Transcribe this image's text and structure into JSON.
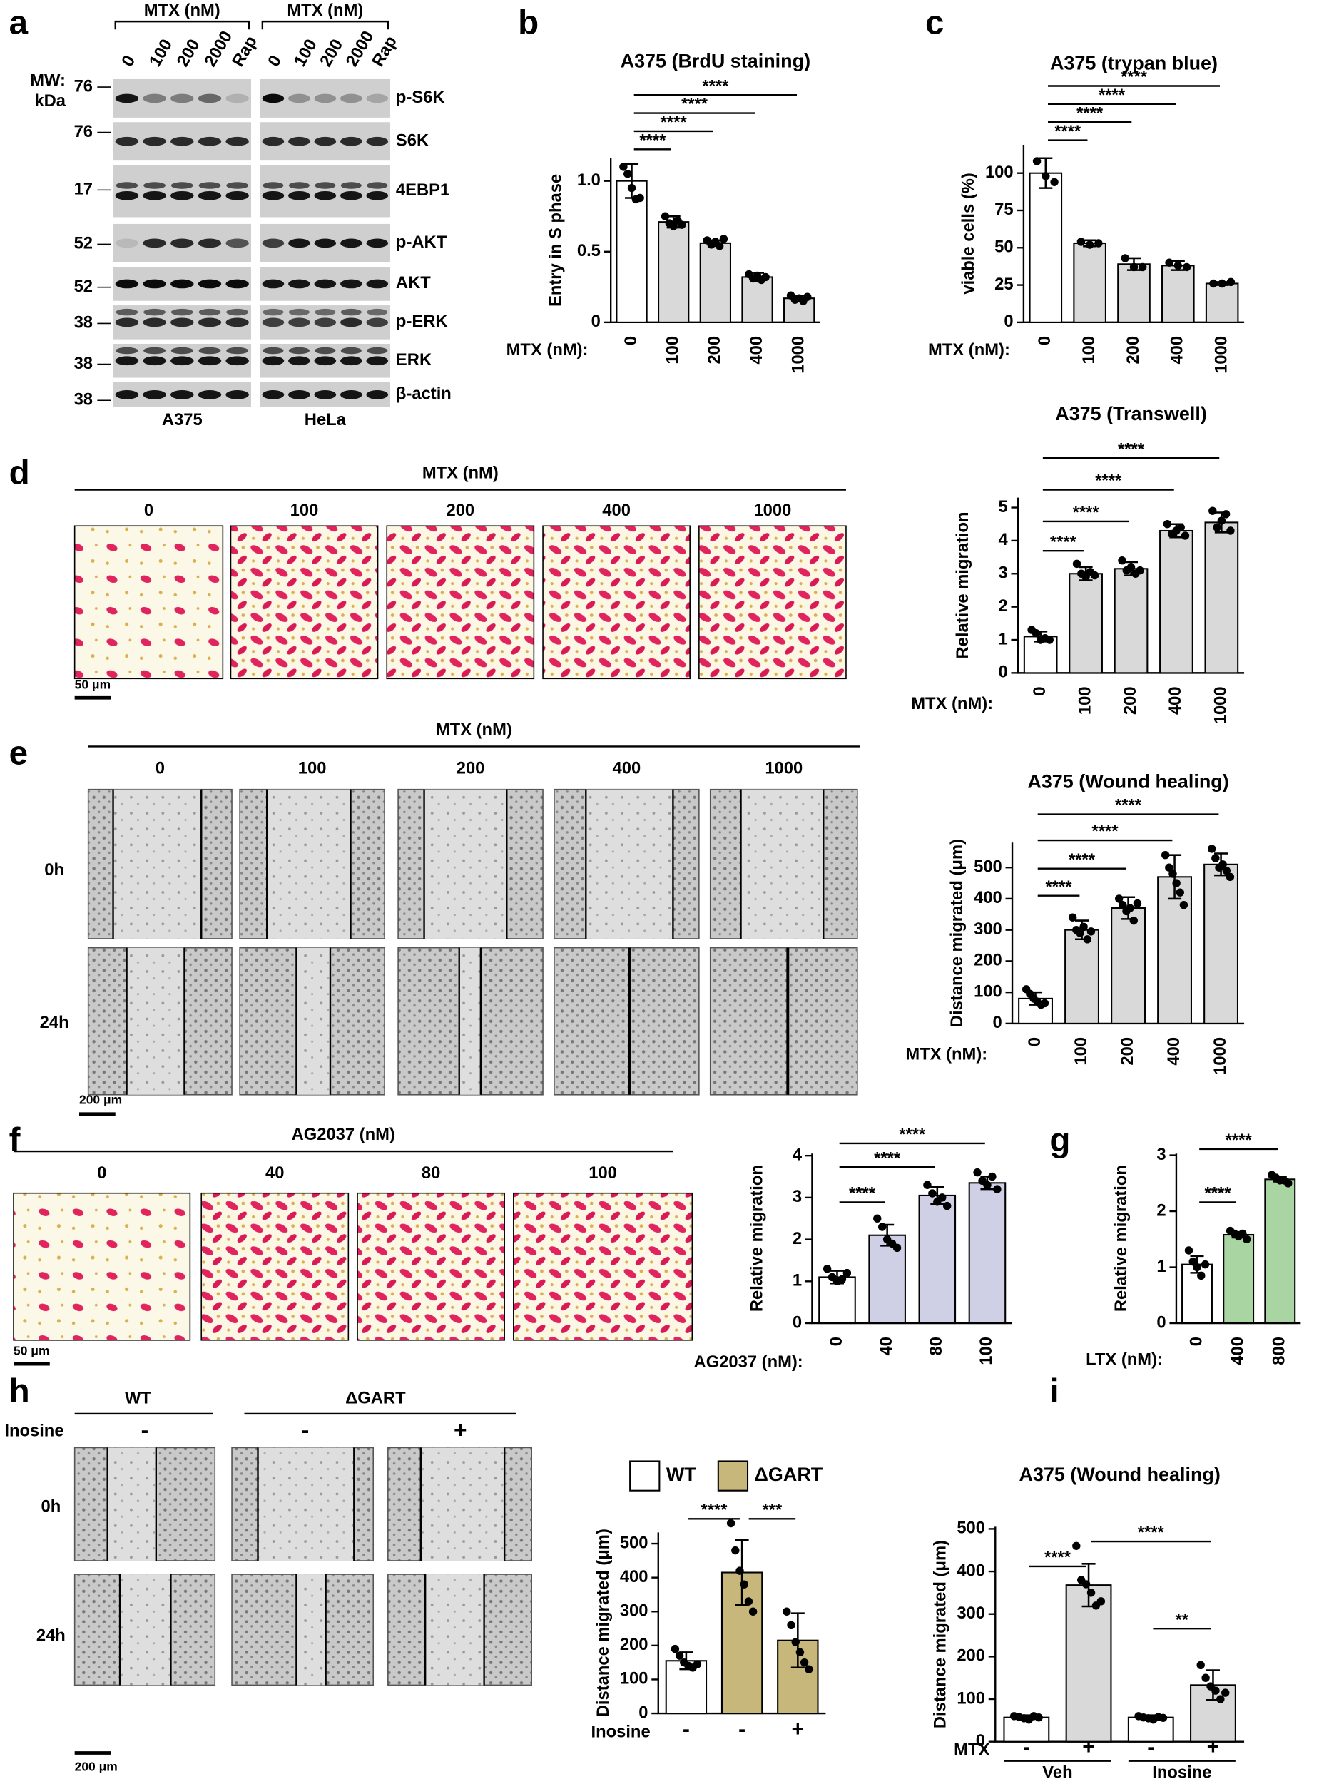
{
  "panel_letters": [
    "a",
    "b",
    "c",
    "d",
    "e",
    "f",
    "g",
    "h",
    "i"
  ],
  "blot": {
    "mw_label": [
      "MW:",
      "kDa"
    ],
    "groups": [
      {
        "header": "MTX (nM)",
        "lanes": [
          "0",
          "100",
          "200",
          "2000",
          "Rap"
        ],
        "cell_line": "A375"
      },
      {
        "header": "MTX (nM)",
        "lanes": [
          "0",
          "100",
          "200",
          "2000",
          "Rap"
        ],
        "cell_line": "HeLa"
      }
    ],
    "rows": [
      {
        "mw": 76,
        "protein": "p-S6K"
      },
      {
        "mw": 76,
        "protein": "S6K"
      },
      {
        "mw": 17,
        "protein": "4EBP1"
      },
      {
        "mw": 52,
        "protein": "p-AKT"
      },
      {
        "mw": 52,
        "protein": "AKT"
      },
      {
        "mw": 38,
        "protein": "p-ERK"
      },
      {
        "mw": 38,
        "protein": "ERK"
      },
      {
        "mw": 38,
        "protein": "β-actin"
      }
    ]
  },
  "images_d": {
    "header": "MTX (nM)",
    "columns": [
      "0",
      "100",
      "200",
      "400",
      "1000"
    ],
    "scale": "50 μm"
  },
  "images_e": {
    "header": "MTX (nM)",
    "columns": [
      "0",
      "100",
      "200",
      "400",
      "1000"
    ],
    "rows": [
      "0h",
      "24h"
    ],
    "scale": "200 μm"
  },
  "images_f": {
    "header": "AG2037 (nM)",
    "columns": [
      "0",
      "40",
      "80",
      "100"
    ],
    "scale": "50 μm"
  },
  "images_h": {
    "groups": [
      "WT",
      "ΔGART"
    ],
    "row_label": "Inosine",
    "columns": [
      "-",
      "-",
      "+"
    ],
    "rows": [
      "0h",
      "24h"
    ],
    "scale": "200 μm"
  },
  "chart_data": [
    {
      "type": "bar",
      "title": "A375 (BrdU staining)",
      "ylabel": "Entry in S phase",
      "xlabel": "MTX (nM):",
      "categories": [
        "0",
        "100",
        "200",
        "400",
        "1000"
      ],
      "values": [
        1.0,
        0.71,
        0.56,
        0.32,
        0.17
      ],
      "errors": [
        0.12,
        0.04,
        0.02,
        0.03,
        0.02
      ],
      "points": [
        [
          1.1,
          1.05,
          0.95,
          0.87,
          0.88
        ],
        [
          0.75,
          0.7,
          0.68,
          0.72,
          0.69
        ],
        [
          0.58,
          0.55,
          0.57,
          0.54,
          0.59
        ],
        [
          0.34,
          0.31,
          0.33,
          0.3,
          0.32
        ],
        [
          0.19,
          0.16,
          0.17,
          0.15,
          0.18
        ]
      ],
      "colors": [
        "#ffffff",
        "#d9d9d9",
        "#d9d9d9",
        "#d9d9d9",
        "#d9d9d9"
      ],
      "ylim": [
        0,
        1.16
      ],
      "yticks": [
        0,
        0.5,
        {
          "value": 1,
          "label": "1.0"
        }
      ],
      "brackets": [
        {
          "from": 0,
          "to": 1,
          "label": "****"
        },
        {
          "from": 0,
          "to": 2,
          "label": "****"
        },
        {
          "from": 0,
          "to": 3,
          "label": "****"
        },
        {
          "from": 0,
          "to": 4,
          "label": "****"
        }
      ]
    },
    {
      "type": "bar",
      "title": "A375 (trypan blue)",
      "ylabel": "viable cells (%)",
      "xlabel": "MTX (nM):",
      "categories": [
        "0",
        "100",
        "200",
        "400",
        "1000"
      ],
      "values": [
        100,
        53,
        39,
        38,
        26
      ],
      "errors": [
        10,
        2,
        4,
        3,
        1
      ],
      "points": [
        [
          108,
          98,
          94
        ],
        [
          54,
          52,
          53
        ],
        [
          43,
          37,
          37
        ],
        [
          40,
          38,
          37
        ],
        [
          26,
          26,
          27
        ]
      ],
      "colors": [
        "#ffffff",
        "#d9d9d9",
        "#d9d9d9",
        "#d9d9d9",
        "#d9d9d9"
      ],
      "ylim": [
        0,
        119
      ],
      "yticks": [
        0,
        25,
        50,
        75,
        100
      ],
      "brackets": [
        {
          "from": 0,
          "to": 1,
          "label": "****"
        },
        {
          "from": 0,
          "to": 2,
          "label": "****"
        },
        {
          "from": 0,
          "to": 3,
          "label": "****"
        },
        {
          "from": 0,
          "to": 4,
          "label": "****"
        }
      ]
    },
    {
      "type": "bar",
      "title": "A375 (Transwell)",
      "ylabel": "Relative migration",
      "xlabel": "MTX (nM):",
      "categories": [
        "0",
        "100",
        "200",
        "400",
        "1000"
      ],
      "values": [
        1.1,
        3.0,
        3.15,
        4.3,
        4.55
      ],
      "errors": [
        0.15,
        0.2,
        0.2,
        0.2,
        0.3
      ],
      "points": [
        [
          1.3,
          1.2,
          1.0,
          1.05,
          1.0
        ],
        [
          3.3,
          3.0,
          2.9,
          3.05,
          2.95
        ],
        [
          3.4,
          3.1,
          3.2,
          3.0,
          3.1
        ],
        [
          4.5,
          4.2,
          4.3,
          4.4,
          4.15
        ],
        [
          4.9,
          4.4,
          4.6,
          4.8,
          4.3
        ]
      ],
      "colors": [
        "#ffffff",
        "#d9d9d9",
        "#d9d9d9",
        "#d9d9d9",
        "#d9d9d9"
      ],
      "ylim": [
        0,
        5.3
      ],
      "yticks": [
        0,
        1,
        2,
        3,
        4,
        5
      ],
      "brackets": [
        {
          "from": 0,
          "to": 1,
          "label": "****"
        },
        {
          "from": 0,
          "to": 2,
          "label": "****"
        },
        {
          "from": 0,
          "to": 3,
          "label": "****"
        },
        {
          "from": 0,
          "to": 4,
          "label": "****"
        }
      ]
    },
    {
      "type": "bar",
      "title": "A375 (Wound healing)",
      "ylabel": "Distance migrated (μm)",
      "xlabel": "MTX (nM):",
      "categories": [
        "0",
        "100",
        "200",
        "400",
        "1000"
      ],
      "values": [
        80,
        300,
        370,
        470,
        510
      ],
      "errors": [
        20,
        30,
        35,
        70,
        35
      ],
      "points": [
        [
          110,
          95,
          80,
          70,
          60,
          65
        ],
        [
          340,
          300,
          290,
          310,
          270,
          295
        ],
        [
          400,
          380,
          360,
          370,
          330,
          385
        ],
        [
          540,
          500,
          480,
          450,
          420,
          380
        ],
        [
          560,
          530,
          500,
          510,
          490,
          470
        ]
      ],
      "colors": [
        "#ffffff",
        "#d9d9d9",
        "#d9d9d9",
        "#d9d9d9",
        "#d9d9d9"
      ],
      "ylim": [
        0,
        580
      ],
      "yticks": [
        0,
        100,
        200,
        300,
        400,
        500
      ],
      "brackets": [
        {
          "from": 0,
          "to": 1,
          "label": "****"
        },
        {
          "from": 0,
          "to": 2,
          "label": "****"
        },
        {
          "from": 0,
          "to": 3,
          "label": "****"
        },
        {
          "from": 0,
          "to": 4,
          "label": "****"
        }
      ]
    },
    {
      "type": "bar",
      "ylabel": "Relative migration",
      "xlabel": "AG2037 (nM):",
      "categories": [
        "0",
        "40",
        "80",
        "100"
      ],
      "values": [
        1.1,
        2.1,
        3.05,
        3.35
      ],
      "errors": [
        0.15,
        0.25,
        0.2,
        0.15
      ],
      "points": [
        [
          1.3,
          1.1,
          1.0,
          1.05,
          1.2
        ],
        [
          2.5,
          2.3,
          2.0,
          1.9,
          1.8
        ],
        [
          3.3,
          3.1,
          2.9,
          3.0,
          2.8
        ],
        [
          3.6,
          3.4,
          3.3,
          3.5,
          3.2
        ]
      ],
      "colors": [
        "#ffffff",
        "#cfcfe6",
        "#cfcfe6",
        "#cfcfe6"
      ],
      "ylim": [
        0,
        4.05
      ],
      "yticks": [
        0,
        1,
        2,
        3,
        4
      ],
      "brackets": [
        {
          "from": 0,
          "to": 1,
          "label": "****"
        },
        {
          "from": 0,
          "to": 2,
          "label": "****"
        },
        {
          "from": 0,
          "to": 3,
          "label": "****"
        }
      ]
    },
    {
      "type": "bar",
      "ylabel": "Relative migration",
      "xlabel": "LTX (nM):",
      "categories": [
        "0",
        "400",
        "800"
      ],
      "values": [
        1.05,
        1.58,
        2.57
      ],
      "errors": [
        0.15,
        0.05,
        0.04
      ],
      "points": [
        [
          1.3,
          1.1,
          1.0,
          0.85,
          1.05
        ],
        [
          1.65,
          1.6,
          1.55,
          1.6,
          1.5
        ],
        [
          2.65,
          2.6,
          2.55,
          2.55,
          2.5
        ]
      ],
      "colors": [
        "#ffffff",
        "#a8d5a2",
        "#a8d5a2"
      ],
      "ylim": [
        0,
        3.03
      ],
      "yticks": [
        0,
        1,
        2,
        3
      ],
      "brackets": [
        {
          "from": 0,
          "to": 1,
          "label": "****"
        },
        {
          "from": 0,
          "to": 2,
          "label": "****"
        }
      ]
    },
    {
      "type": "bar",
      "ylabel": "Distance migrated (μm)",
      "xlabel": "Inosine",
      "categories": [
        "-",
        "-",
        "+"
      ],
      "values": [
        155,
        415,
        215
      ],
      "errors": [
        25,
        95,
        80
      ],
      "points": [
        [
          190,
          170,
          150,
          140,
          135,
          145
        ],
        [
          560,
          480,
          420,
          380,
          330,
          300
        ],
        [
          300,
          260,
          210,
          180,
          150,
          130
        ]
      ],
      "colors": [
        "#ffffff",
        "#c8b77a",
        "#c8b77a"
      ],
      "ylim": [
        0,
        533
      ],
      "yticks": [
        0,
        100,
        200,
        300,
        400,
        500
      ],
      "legend": [
        {
          "name": "WT",
          "color": "#ffffff"
        },
        {
          "name": "ΔGART",
          "color": "#c8b77a"
        }
      ],
      "brackets": [
        {
          "from": 0,
          "to": 1,
          "label": "****"
        },
        {
          "from": 1,
          "to": 2,
          "label": "***"
        }
      ]
    },
    {
      "type": "bar",
      "title": "A375 (Wound healing)",
      "ylabel": "Distance migrated (μm)",
      "xlabel": "MTX",
      "categories": [
        "-",
        "+",
        "-",
        "+"
      ],
      "values": [
        57,
        368,
        57,
        133
      ],
      "errors": [
        5,
        50,
        5,
        35
      ],
      "points": [
        [
          60,
          58,
          55,
          52,
          60,
          57
        ],
        [
          460,
          380,
          370,
          350,
          320,
          330
        ],
        [
          60,
          57,
          55,
          52,
          58,
          56
        ],
        [
          180,
          150,
          130,
          120,
          100,
          115
        ]
      ],
      "colors": [
        "#ffffff",
        "#d9d9d9",
        "#ffffff",
        "#d9d9d9"
      ],
      "ylim": [
        0,
        505
      ],
      "yticks": [
        0,
        100,
        200,
        300,
        400,
        500
      ],
      "groups": [
        "Veh",
        "Inosine"
      ],
      "brackets": [
        {
          "from": 0,
          "to": 1,
          "label": "****"
        },
        {
          "from": 1,
          "to": 3,
          "label": "****"
        },
        {
          "from": 2,
          "to": 3,
          "label": "**"
        }
      ]
    }
  ]
}
